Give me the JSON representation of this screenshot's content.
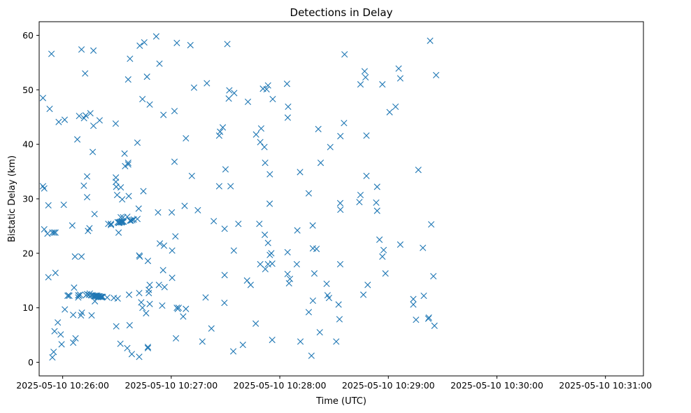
{
  "chart_data": {
    "type": "scatter",
    "title": "Detections in Delay",
    "xlabel": "Time (UTC)",
    "ylabel": "Bistatic Delay (km)",
    "marker": "x",
    "color": "#1f77b4",
    "x_unit": "seconds after 2025-05-10 10:25:00 UTC",
    "xlim": [
      47,
      381
    ],
    "ylim": [
      -2.5,
      62.5
    ],
    "x_ticks": [
      {
        "value": 60,
        "label": "2025-05-10 10:26:00"
      },
      {
        "value": 120,
        "label": "2025-05-10 10:27:00"
      },
      {
        "value": 180,
        "label": "2025-05-10 10:28:00"
      },
      {
        "value": 240,
        "label": "2025-05-10 10:29:00"
      },
      {
        "value": 300,
        "label": "2025-05-10 10:30:00"
      },
      {
        "value": 360,
        "label": "2025-05-10 10:31:00"
      }
    ],
    "y_ticks": [
      {
        "value": 0,
        "label": "0"
      },
      {
        "value": 10,
        "label": "10"
      },
      {
        "value": 20,
        "label": "20"
      },
      {
        "value": 30,
        "label": "30"
      },
      {
        "value": 40,
        "label": "40"
      },
      {
        "value": 50,
        "label": "50"
      },
      {
        "value": 60,
        "label": "60"
      }
    ],
    "points": [
      [
        49.1,
        48.5
      ],
      [
        49.1,
        32.3
      ],
      [
        49.8,
        31.9
      ],
      [
        49.8,
        24.4
      ],
      [
        51.6,
        23.6
      ],
      [
        52.1,
        28.8
      ],
      [
        52.1,
        15.6
      ],
      [
        52.8,
        46.5
      ],
      [
        53.8,
        56.6
      ],
      [
        54.3,
        23.8
      ],
      [
        54.3,
        0.9
      ],
      [
        55.0,
        1.9
      ],
      [
        55.2,
        23.8
      ],
      [
        55.5,
        5.7
      ],
      [
        56.0,
        23.8
      ],
      [
        56.0,
        16.4
      ],
      [
        57.3,
        7.3
      ],
      [
        57.8,
        44.1
      ],
      [
        58.9,
        5.1
      ],
      [
        59.4,
        3.3
      ],
      [
        60.6,
        28.9
      ],
      [
        61.1,
        44.5
      ],
      [
        61.2,
        9.7
      ],
      [
        62.7,
        12.2
      ],
      [
        63.2,
        12.3
      ],
      [
        63.7,
        12.2
      ],
      [
        65.3,
        25.1
      ],
      [
        65.8,
        8.7
      ],
      [
        65.8,
        3.6
      ],
      [
        66.3,
        13.7
      ],
      [
        66.8,
        19.4
      ],
      [
        67.1,
        4.4
      ],
      [
        68.1,
        40.9
      ],
      [
        68.6,
        11.9
      ],
      [
        68.6,
        12.3
      ],
      [
        69.1,
        12.2
      ],
      [
        69.1,
        45.2
      ],
      [
        69.6,
        12.4
      ],
      [
        70.1,
        8.6
      ],
      [
        70.4,
        57.4
      ],
      [
        70.4,
        19.4
      ],
      [
        70.6,
        9.1
      ],
      [
        71.7,
        32.4
      ],
      [
        71.8,
        44.8
      ],
      [
        72.4,
        53.0
      ],
      [
        72.7,
        45.3
      ],
      [
        72.9,
        12.3
      ],
      [
        73.5,
        30.3
      ],
      [
        73.5,
        34.1
      ],
      [
        73.5,
        12.5
      ],
      [
        74.0,
        24.1
      ],
      [
        74.5,
        12.4
      ],
      [
        74.8,
        24.6
      ],
      [
        75.0,
        12.6
      ],
      [
        75.3,
        45.7
      ],
      [
        75.8,
        12.3
      ],
      [
        76.0,
        8.6
      ],
      [
        76.6,
        38.6
      ],
      [
        76.6,
        12.3
      ],
      [
        77.0,
        43.4
      ],
      [
        77.0,
        57.2
      ],
      [
        77.3,
        12.2
      ],
      [
        77.6,
        12.1
      ],
      [
        77.6,
        27.2
      ],
      [
        77.8,
        11.2
      ],
      [
        78.0,
        12.2
      ],
      [
        78.3,
        12.2
      ],
      [
        78.6,
        12.2
      ],
      [
        78.8,
        12.2
      ],
      [
        79.1,
        12.2
      ],
      [
        79.4,
        12.0
      ],
      [
        79.6,
        12.1
      ],
      [
        79.9,
        12.0
      ],
      [
        80.1,
        12.1
      ],
      [
        80.4,
        44.4
      ],
      [
        80.4,
        12.1
      ],
      [
        80.9,
        12.0
      ],
      [
        81.2,
        12.0
      ],
      [
        81.7,
        12.0
      ],
      [
        82.2,
        12.0
      ],
      [
        84.6,
        11.9
      ],
      [
        85.2,
        25.4
      ],
      [
        86.7,
        25.4
      ],
      [
        86.7,
        25.2
      ],
      [
        88.3,
        11.8
      ],
      [
        89.3,
        43.8
      ],
      [
        89.4,
        33.9
      ],
      [
        89.4,
        33.1
      ],
      [
        89.6,
        32.2
      ],
      [
        89.6,
        6.6
      ],
      [
        90.1,
        30.7
      ],
      [
        90.4,
        11.7
      ],
      [
        90.9,
        23.8
      ],
      [
        90.4,
        25.7
      ],
      [
        90.9,
        25.6
      ],
      [
        91.1,
        25.6
      ],
      [
        91.4,
        25.7
      ],
      [
        91.6,
        25.7
      ],
      [
        91.9,
        3.4
      ],
      [
        92.1,
        26.6
      ],
      [
        92.1,
        32.1
      ],
      [
        92.1,
        25.8
      ],
      [
        92.4,
        25.7
      ],
      [
        92.6,
        25.7
      ],
      [
        92.9,
        25.8
      ],
      [
        92.9,
        29.9
      ],
      [
        93.1,
        25.8
      ],
      [
        93.4,
        26.6
      ],
      [
        93.7,
        25.8
      ],
      [
        94.2,
        38.3
      ],
      [
        94.5,
        36.0
      ],
      [
        95.7,
        2.6
      ],
      [
        95.7,
        26.7
      ],
      [
        96.2,
        36.3
      ],
      [
        96.2,
        51.9
      ],
      [
        96.2,
        36.6
      ],
      [
        96.5,
        30.5
      ],
      [
        96.7,
        12.4
      ],
      [
        97.0,
        6.8
      ],
      [
        97.2,
        55.7
      ],
      [
        97.2,
        26.0
      ],
      [
        97.7,
        26.0
      ],
      [
        98.2,
        1.5
      ],
      [
        98.5,
        26.1
      ],
      [
        99.3,
        26.2
      ],
      [
        101.3,
        40.3
      ],
      [
        101.3,
        26.3
      ],
      [
        102.0,
        28.2
      ],
      [
        102.3,
        1.0
      ],
      [
        102.3,
        19.6
      ],
      [
        102.3,
        12.7
      ],
      [
        102.6,
        19.4
      ],
      [
        102.6,
        58.1
      ],
      [
        103.4,
        11.0
      ],
      [
        104.1,
        48.3
      ],
      [
        104.1,
        10.0
      ],
      [
        104.6,
        31.4
      ],
      [
        105.1,
        58.7
      ],
      [
        106.1,
        9.0
      ],
      [
        106.6,
        52.4
      ],
      [
        107.1,
        2.6
      ],
      [
        107.1,
        2.8
      ],
      [
        107.1,
        18.6
      ],
      [
        107.6,
        12.7
      ],
      [
        107.6,
        13.3
      ],
      [
        108.1,
        14.2
      ],
      [
        108.1,
        47.3
      ],
      [
        108.1,
        10.7
      ],
      [
        111.7,
        59.8
      ],
      [
        112.7,
        27.5
      ],
      [
        113.2,
        14.2
      ],
      [
        113.5,
        54.8
      ],
      [
        113.7,
        21.8
      ],
      [
        115.0,
        10.4
      ],
      [
        115.5,
        16.9
      ],
      [
        115.7,
        45.4
      ],
      [
        116.0,
        21.4
      ],
      [
        116.3,
        13.8
      ],
      [
        120.3,
        27.5
      ],
      [
        120.5,
        15.5
      ],
      [
        120.5,
        20.5
      ],
      [
        121.8,
        36.8
      ],
      [
        121.8,
        46.1
      ],
      [
        122.3,
        23.1
      ],
      [
        122.6,
        4.4
      ],
      [
        123.1,
        58.6
      ],
      [
        123.1,
        10.0
      ],
      [
        123.6,
        9.8
      ],
      [
        124.1,
        10.0
      ],
      [
        126.6,
        8.4
      ],
      [
        127.4,
        28.7
      ],
      [
        128.1,
        41.1
      ],
      [
        128.1,
        9.8
      ],
      [
        130.6,
        58.2
      ],
      [
        131.4,
        34.2
      ],
      [
        132.6,
        50.4
      ],
      [
        134.7,
        27.9
      ],
      [
        137.2,
        3.8
      ],
      [
        139.0,
        11.9
      ],
      [
        139.7,
        51.2
      ],
      [
        142.2,
        6.2
      ],
      [
        143.5,
        25.9
      ],
      [
        146.5,
        32.3
      ],
      [
        146.5,
        41.6
      ],
      [
        147.0,
        42.3
      ],
      [
        148.5,
        43.1
      ],
      [
        149.4,
        10.9
      ],
      [
        149.5,
        24.5
      ],
      [
        149.5,
        16.0
      ],
      [
        150.0,
        35.4
      ],
      [
        151.0,
        58.4
      ],
      [
        151.8,
        48.4
      ],
      [
        152.1,
        49.9
      ],
      [
        152.8,
        32.3
      ],
      [
        154.3,
        2.0
      ],
      [
        154.6,
        20.5
      ],
      [
        154.8,
        49.4
      ],
      [
        157.1,
        25.4
      ],
      [
        159.6,
        3.2
      ],
      [
        161.9,
        15.0
      ],
      [
        162.4,
        47.8
      ],
      [
        163.9,
        14.2
      ],
      [
        166.7,
        7.1
      ],
      [
        166.9,
        41.8
      ],
      [
        168.7,
        25.4
      ],
      [
        169.2,
        18.0
      ],
      [
        169.2,
        40.4
      ],
      [
        169.7,
        42.9
      ],
      [
        170.7,
        50.2
      ],
      [
        171.5,
        39.5
      ],
      [
        171.7,
        23.4
      ],
      [
        171.9,
        36.6
      ],
      [
        172.0,
        17.1
      ],
      [
        172.7,
        50.1
      ],
      [
        173.5,
        18.0
      ],
      [
        173.5,
        21.9
      ],
      [
        173.5,
        50.8
      ],
      [
        174.4,
        29.1
      ],
      [
        174.5,
        34.5
      ],
      [
        174.5,
        19.7
      ],
      [
        175.3,
        20.0
      ],
      [
        175.8,
        18.1
      ],
      [
        175.8,
        4.1
      ],
      [
        176.1,
        48.3
      ],
      [
        184.0,
        51.1
      ],
      [
        184.3,
        20.2
      ],
      [
        184.3,
        16.2
      ],
      [
        184.4,
        44.9
      ],
      [
        184.6,
        46.9
      ],
      [
        185.1,
        14.5
      ],
      [
        185.6,
        15.3
      ],
      [
        189.4,
        18.0
      ],
      [
        189.7,
        24.2
      ],
      [
        191.2,
        34.9
      ],
      [
        191.4,
        3.8
      ],
      [
        196.0,
        9.2
      ],
      [
        196.0,
        31.0
      ],
      [
        197.5,
        1.2
      ],
      [
        198.2,
        25.1
      ],
      [
        198.3,
        11.3
      ],
      [
        198.3,
        20.9
      ],
      [
        199.1,
        16.3
      ],
      [
        200.3,
        20.8
      ],
      [
        201.3,
        42.8
      ],
      [
        202.1,
        5.5
      ],
      [
        202.6,
        36.6
      ],
      [
        205.9,
        14.4
      ],
      [
        206.4,
        12.3
      ],
      [
        207.2,
        11.8
      ],
      [
        207.9,
        39.5
      ],
      [
        211.2,
        3.8
      ],
      [
        212.5,
        10.6
      ],
      [
        213.0,
        7.9
      ],
      [
        213.4,
        29.2
      ],
      [
        213.4,
        18.0
      ],
      [
        213.5,
        41.5
      ],
      [
        213.5,
        28.0
      ],
      [
        215.5,
        43.9
      ],
      [
        215.8,
        56.5
      ],
      [
        224.0,
        29.4
      ],
      [
        224.6,
        30.7
      ],
      [
        224.6,
        51.0
      ],
      [
        226.2,
        12.4
      ],
      [
        226.9,
        53.4
      ],
      [
        227.4,
        52.3
      ],
      [
        227.9,
        41.6
      ],
      [
        227.9,
        34.2
      ],
      [
        228.6,
        14.2
      ],
      [
        233.3,
        29.3
      ],
      [
        233.8,
        32.2
      ],
      [
        233.8,
        27.8
      ],
      [
        235.1,
        22.5
      ],
      [
        236.7,
        51.0
      ],
      [
        236.7,
        19.4
      ],
      [
        237.4,
        20.6
      ],
      [
        238.4,
        16.3
      ],
      [
        240.7,
        45.9
      ],
      [
        244.0,
        46.9
      ],
      [
        245.7,
        53.9
      ],
      [
        246.6,
        52.1
      ],
      [
        246.6,
        21.6
      ],
      [
        253.8,
        11.6
      ],
      [
        253.8,
        10.6
      ],
      [
        255.3,
        7.8
      ],
      [
        256.6,
        35.3
      ],
      [
        259.1,
        21.0
      ],
      [
        259.6,
        12.2
      ],
      [
        262.1,
        8.0
      ],
      [
        262.4,
        8.2
      ],
      [
        263.1,
        59.0
      ],
      [
        263.7,
        25.3
      ],
      [
        264.9,
        15.8
      ],
      [
        265.5,
        6.7
      ],
      [
        266.4,
        52.7
      ]
    ]
  }
}
